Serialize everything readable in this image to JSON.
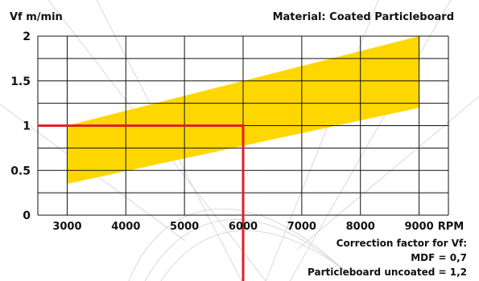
{
  "chart_data": {
    "type": "area",
    "title": "Material: Coated Particleboard",
    "ylabel": "Vf m/min",
    "xlabel": "RPM",
    "x_ticks": [
      "3000",
      "4000",
      "5000",
      "6000",
      "7000",
      "8000",
      "9000"
    ],
    "y_ticks": [
      "0",
      "0.5",
      "1",
      "1.5",
      "2"
    ],
    "xlim": [
      2500,
      9500
    ],
    "ylim": [
      0,
      2
    ],
    "grid": true,
    "band": {
      "color": "#ffd700",
      "x": [
        3000,
        9000
      ],
      "lower": [
        0.35,
        1.2
      ],
      "upper": [
        1.0,
        2.0
      ]
    },
    "reading_line": {
      "color": "#e41e26",
      "from_x": 2500,
      "rpm": 6000,
      "vf": 1.0
    },
    "notes": [
      "Correction factor for Vf:",
      "MDF = 0,7",
      "Particleboard uncoated = 1,2"
    ]
  },
  "colors": {
    "grid": "#111111",
    "text": "#111111",
    "background_swirl": "#c9c9c9"
  }
}
